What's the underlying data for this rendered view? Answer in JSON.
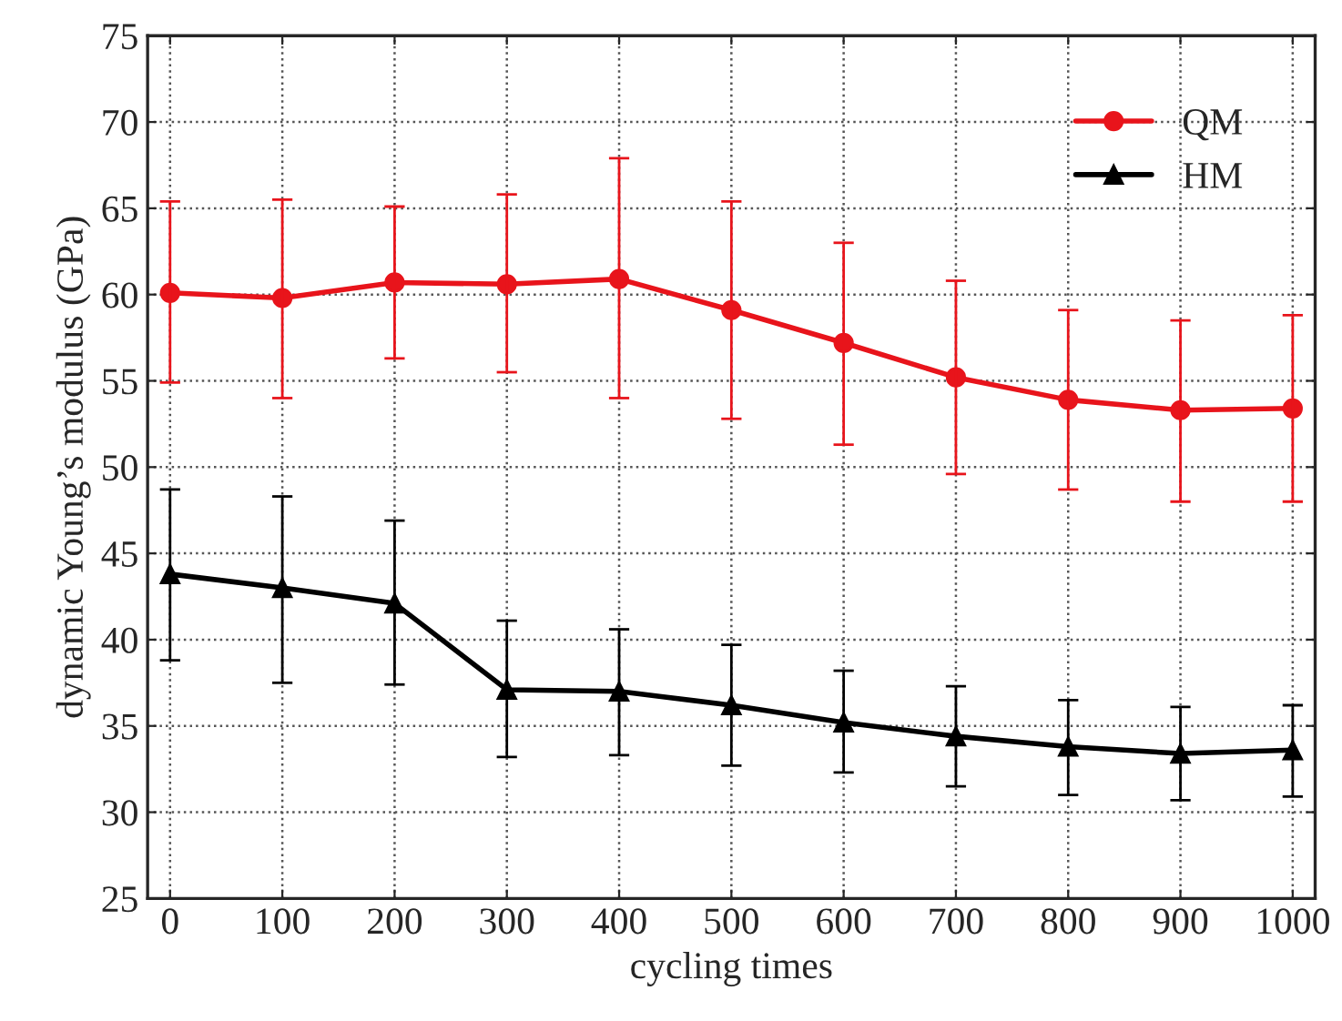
{
  "chart_data": {
    "type": "line",
    "xlabel": "cycling times",
    "ylabel": "dynamic Young’s modulus (GPa)",
    "x": [
      0,
      100,
      200,
      300,
      400,
      500,
      600,
      700,
      800,
      900,
      1000
    ],
    "series": [
      {
        "name": "QM",
        "color": "#e8141b",
        "marker": "circle",
        "values": [
          60.1,
          59.8,
          60.7,
          60.6,
          60.9,
          59.1,
          57.2,
          55.2,
          53.9,
          53.3,
          53.4
        ],
        "errors": [
          [
            54.9,
            65.4
          ],
          [
            54.0,
            65.5
          ],
          [
            56.3,
            65.1
          ],
          [
            55.5,
            65.8
          ],
          [
            54.0,
            67.9
          ],
          [
            52.8,
            65.4
          ],
          [
            51.3,
            63.0
          ],
          [
            49.6,
            60.8
          ],
          [
            48.7,
            59.1
          ],
          [
            48.0,
            58.5
          ],
          [
            48.0,
            58.8
          ]
        ]
      },
      {
        "name": "HM",
        "color": "#000000",
        "marker": "triangle",
        "values": [
          43.8,
          43.0,
          42.1,
          37.1,
          37.0,
          36.2,
          35.2,
          34.4,
          33.8,
          33.4,
          33.6
        ],
        "errors": [
          [
            38.8,
            48.7
          ],
          [
            37.5,
            48.3
          ],
          [
            37.4,
            46.9
          ],
          [
            33.2,
            41.1
          ],
          [
            33.3,
            40.6
          ],
          [
            32.7,
            39.7
          ],
          [
            32.3,
            38.2
          ],
          [
            31.5,
            37.3
          ],
          [
            31.0,
            36.5
          ],
          [
            30.7,
            36.1
          ],
          [
            30.9,
            36.2
          ]
        ]
      }
    ],
    "xlim": [
      -20,
      1020
    ],
    "xticks": [
      0,
      100,
      200,
      300,
      400,
      500,
      600,
      700,
      800,
      900,
      1000
    ],
    "ylim": [
      25,
      75
    ],
    "yticks": [
      25,
      30,
      35,
      40,
      45,
      50,
      55,
      60,
      65,
      70,
      75
    ],
    "grid": true,
    "legend": "top right",
    "line_style": "solid"
  }
}
